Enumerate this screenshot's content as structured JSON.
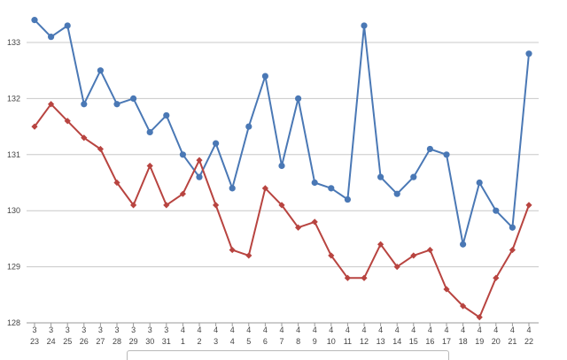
{
  "chart_data": {
    "type": "line",
    "categories": [
      [
        "3",
        "23"
      ],
      [
        "3",
        "24"
      ],
      [
        "3",
        "25"
      ],
      [
        "3",
        "26"
      ],
      [
        "3",
        "27"
      ],
      [
        "3",
        "28"
      ],
      [
        "3",
        "29"
      ],
      [
        "3",
        "30"
      ],
      [
        "3",
        "31"
      ],
      [
        "4",
        "1"
      ],
      [
        "4",
        "2"
      ],
      [
        "4",
        "3"
      ],
      [
        "4",
        "4"
      ],
      [
        "4",
        "5"
      ],
      [
        "4",
        "6"
      ],
      [
        "4",
        "7"
      ],
      [
        "4",
        "8"
      ],
      [
        "4",
        "9"
      ],
      [
        "4",
        "10"
      ],
      [
        "4",
        "11"
      ],
      [
        "4",
        "12"
      ],
      [
        "4",
        "13"
      ],
      [
        "4",
        "14"
      ],
      [
        "4",
        "15"
      ],
      [
        "4",
        "16"
      ],
      [
        "4",
        "17"
      ],
      [
        "4",
        "18"
      ],
      [
        "4",
        "19"
      ],
      [
        "4",
        "20"
      ],
      [
        "4",
        "21"
      ],
      [
        "4",
        "22"
      ]
    ],
    "series": [
      {
        "color": "#4a78b5",
        "marker": "circle",
        "values": [
          133.4,
          133.1,
          133.3,
          131.9,
          132.5,
          131.9,
          132.0,
          131.4,
          131.7,
          131.0,
          130.6,
          131.2,
          130.4,
          131.5,
          132.4,
          130.8,
          132.0,
          130.5,
          130.4,
          130.2,
          133.3,
          130.6,
          130.3,
          130.6,
          131.1,
          131.0,
          129.4,
          130.5,
          130.0,
          129.7,
          132.8
        ]
      },
      {
        "color": "#b84440",
        "marker": "diamond",
        "values": [
          131.5,
          131.9,
          131.6,
          131.3,
          131.1,
          130.5,
          130.1,
          130.8,
          130.1,
          130.3,
          130.9,
          130.1,
          129.3,
          129.2,
          130.4,
          130.1,
          129.7,
          129.8,
          129.2,
          128.8,
          128.8,
          129.4,
          129.0,
          129.2,
          129.3,
          128.6,
          128.3,
          128.1,
          128.8,
          129.3,
          130.1
        ]
      }
    ],
    "yticks": [
      "128",
      "129",
      "130",
      "131",
      "132",
      "133"
    ],
    "ylim": [
      128,
      133.4
    ],
    "grid": true,
    "title": "",
    "xlabel": "",
    "ylabel": ""
  }
}
